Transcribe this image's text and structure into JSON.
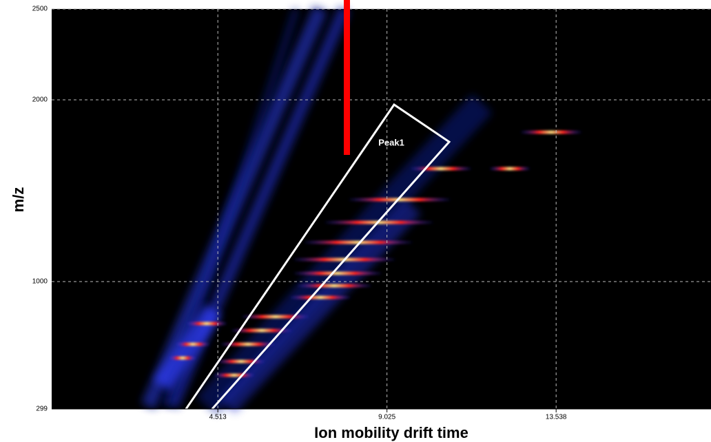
{
  "chart_data": {
    "type": "heatmap",
    "x_label": "Ion mobility drift time",
    "y_label": "m/z",
    "annotation": "Peak1",
    "xlim": [
      0.08,
      17.67
    ],
    "xticks": [
      4.513,
      9.025,
      13.538
    ],
    "ylim": [
      299,
      2500
    ],
    "yticks": [
      299,
      1000,
      2000,
      2500
    ],
    "grid": true
  }
}
